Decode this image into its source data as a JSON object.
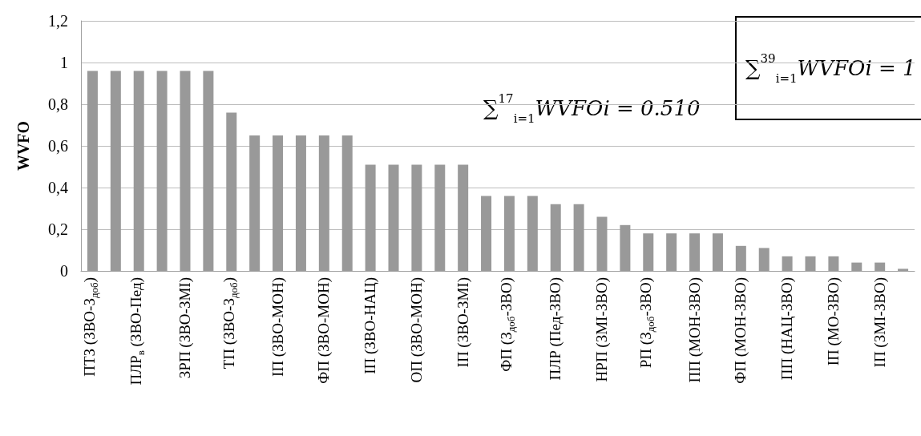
{
  "chart_data": {
    "type": "bar",
    "ylabel": "WVFO",
    "categories": [
      "ПТЗ (ЗВО-З$_{доб}$)",
      null,
      "ПЛР$_{в}$ (ЗВО-Пед)",
      null,
      "ЗРП (ЗВО-ЗМІ)",
      null,
      "ТП (ЗВО-З$_{доб}$)",
      null,
      "ІП (ЗВО-МОН)",
      null,
      "ФП (ЗВО-МОН)",
      null,
      "ІП (ЗВО-НАЦ)",
      null,
      "ОП (ЗВО-МОН)",
      null,
      "ІП (ЗВО-ЗМІ)",
      null,
      "ФП (З$_{доб}$-ЗВО)",
      null,
      "ПЛР (Пед-ЗВО)",
      null,
      "НРП (ЗМІ-ЗВО)",
      null,
      "РП (З$_{доб}$-ЗВО)",
      null,
      "ПП (МОН-ЗВО)",
      null,
      "ФП (МОН-ЗВО)",
      null,
      "ПП (НАЦ-ЗВО)",
      null,
      "ІП (МО-ЗВО)",
      null,
      "ІП (ЗМІ-ЗВО)",
      null
    ],
    "values": [
      0.96,
      0.96,
      0.96,
      0.96,
      0.96,
      0.96,
      0.76,
      0.65,
      0.65,
      0.65,
      0.65,
      0.65,
      0.51,
      0.51,
      0.51,
      0.51,
      0.51,
      0.36,
      0.36,
      0.36,
      0.32,
      0.32,
      0.26,
      0.22,
      0.18,
      0.18,
      0.18,
      0.18,
      0.12,
      0.11,
      0.07,
      0.07,
      0.07,
      0.04,
      0.04,
      0.01
    ],
    "color": "#999999",
    "ylim": [
      0,
      1.2
    ],
    "yticks": [
      0,
      {
        "value": 0.2,
        "label": "0,2"
      },
      {
        "value": 0.4,
        "label": "0,4"
      },
      {
        "value": 0.6,
        "label": "0,6"
      },
      {
        "value": 0.8,
        "label": "0,8"
      },
      1,
      {
        "value": 1.2,
        "label": "1,2"
      }
    ],
    "grid": "y",
    "annotations": [
      "∑$^{17}$$_{i=1}$WVFOi = 0.510",
      "∑$^{39}$$_{i=1}$WVFOi = 1"
    ]
  }
}
